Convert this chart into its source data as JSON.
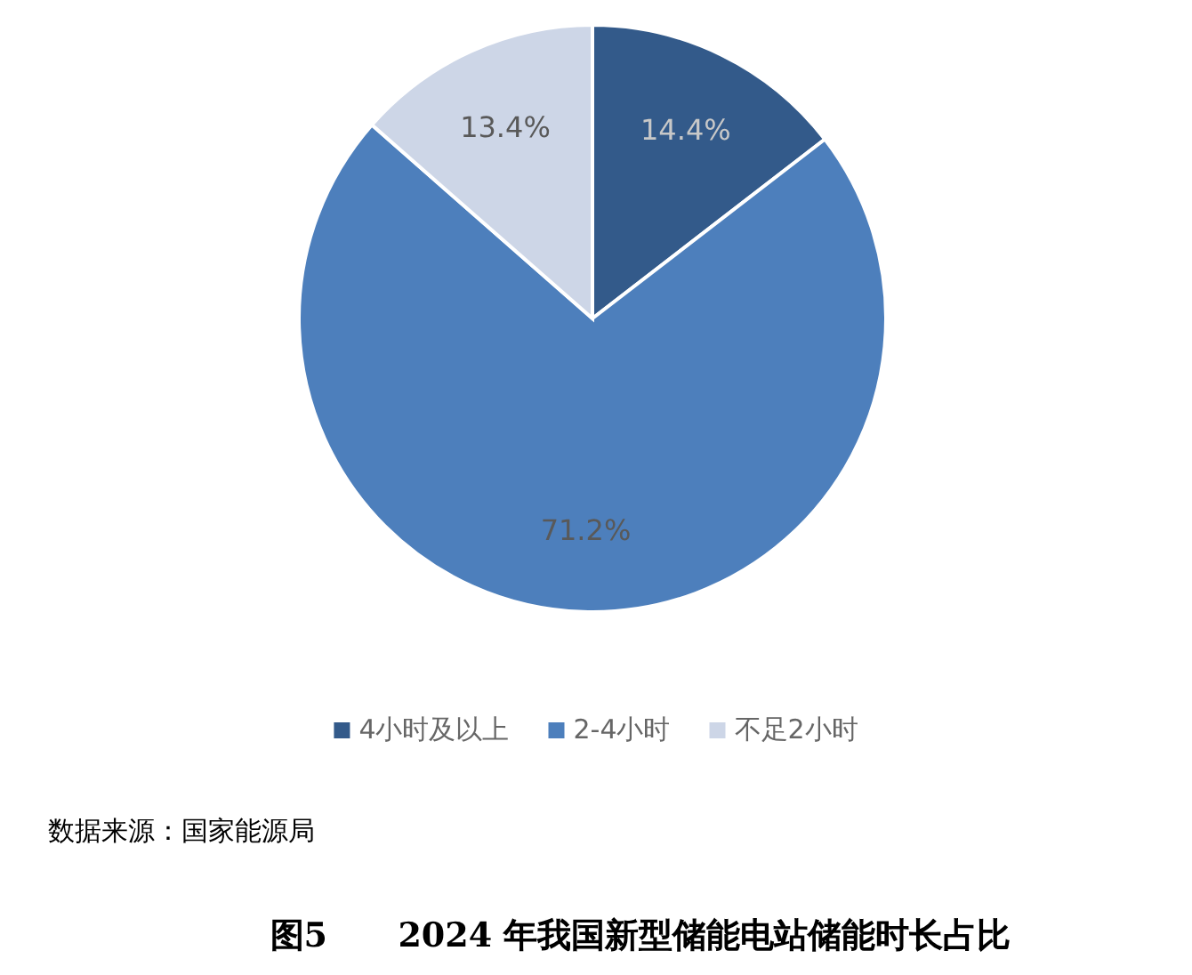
{
  "chart_data": {
    "type": "pie",
    "title": "图5      2024 年我国新型储能电站储能时长占比",
    "categories": [
      "4小时及以上",
      "2-4小时",
      "不足2小时"
    ],
    "values": [
      14.4,
      71.2,
      13.4
    ],
    "colors": [
      "#335a8a",
      "#4d7fbc",
      "#cdd6e7"
    ],
    "value_labels": [
      "14.4%",
      "71.2%",
      "13.4%"
    ],
    "legend": "bottom",
    "annotations": [
      "数据来源：国家能源局"
    ]
  }
}
